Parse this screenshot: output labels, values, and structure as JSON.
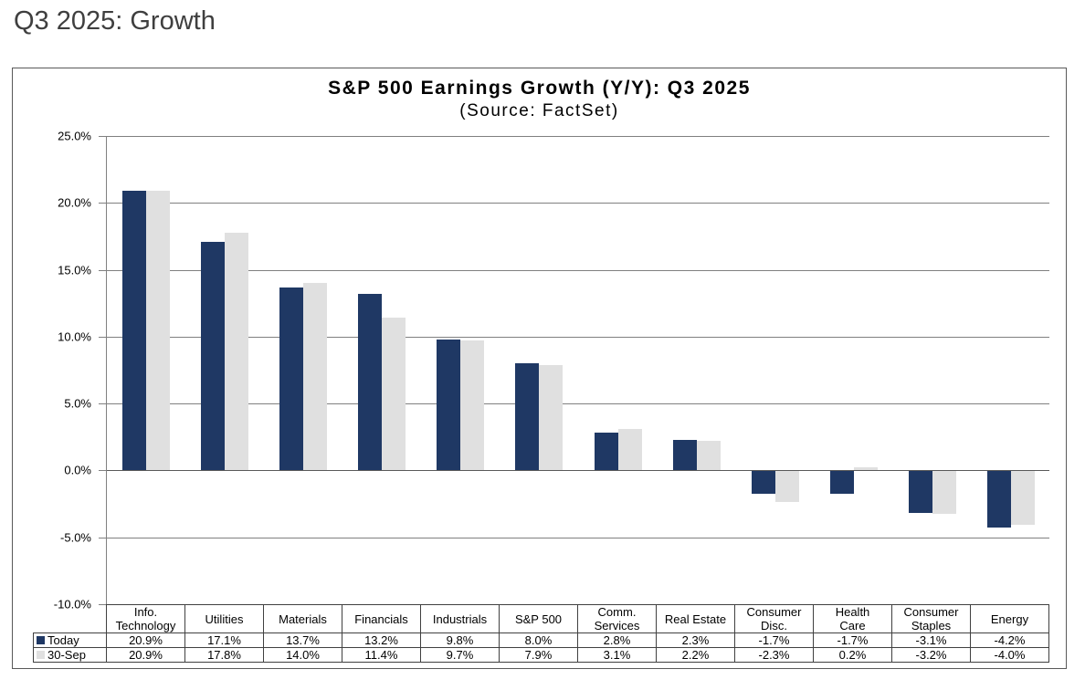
{
  "page": {
    "title": "Q3 2025: Growth"
  },
  "chart": {
    "title": "S&P 500 Earnings Growth (Y/Y): Q3 2025",
    "subtitle": "(Source: FactSet)"
  },
  "chart_data": {
    "type": "bar",
    "title": "S&P 500 Earnings Growth (Y/Y): Q3 2025",
    "subtitle": "(Source: FactSet)",
    "categories": [
      "Info. Technology",
      "Utilities",
      "Materials",
      "Financials",
      "Industrials",
      "S&P 500",
      "Comm. Services",
      "Real Estate",
      "Consumer Disc.",
      "Health Care",
      "Consumer Staples",
      "Energy"
    ],
    "category_display": [
      "Info.\nTechnology",
      "Utilities",
      "Materials",
      "Financials",
      "Industrials",
      "S&P 500",
      "Comm.\nServices",
      "Real Estate",
      "Consumer\nDisc.",
      "Health\nCare",
      "Consumer\nStaples",
      "Energy"
    ],
    "series": [
      {
        "name": "Today",
        "color": "#1F3864",
        "values": [
          20.9,
          17.1,
          13.7,
          13.2,
          9.8,
          8.0,
          2.8,
          2.3,
          -1.7,
          -1.7,
          -3.1,
          -4.2
        ]
      },
      {
        "name": "30-Sep",
        "color": "#E0E0E0",
        "values": [
          20.9,
          17.8,
          14.0,
          11.4,
          9.7,
          7.9,
          3.1,
          2.2,
          -2.3,
          0.2,
          -3.2,
          -4.0
        ]
      }
    ],
    "ylim": [
      -10,
      25
    ],
    "ytick_step": 5,
    "y_tick_labels": [
      "25.0%",
      "20.0%",
      "15.0%",
      "10.0%",
      "5.0%",
      "0.0%",
      "-5.0%",
      "-10.0%"
    ],
    "grid": true,
    "legend_position": "table-left",
    "value_suffix": "%",
    "xlabel": "",
    "ylabel": ""
  },
  "colors": {
    "bar_today": "#1F3864",
    "bar_30sep": "#E0E0E0",
    "gridline": "#808080",
    "zero_line": "#595959",
    "table_border": "#404040",
    "box_border": "#595959",
    "page_title_text": "#3F3F3F"
  }
}
